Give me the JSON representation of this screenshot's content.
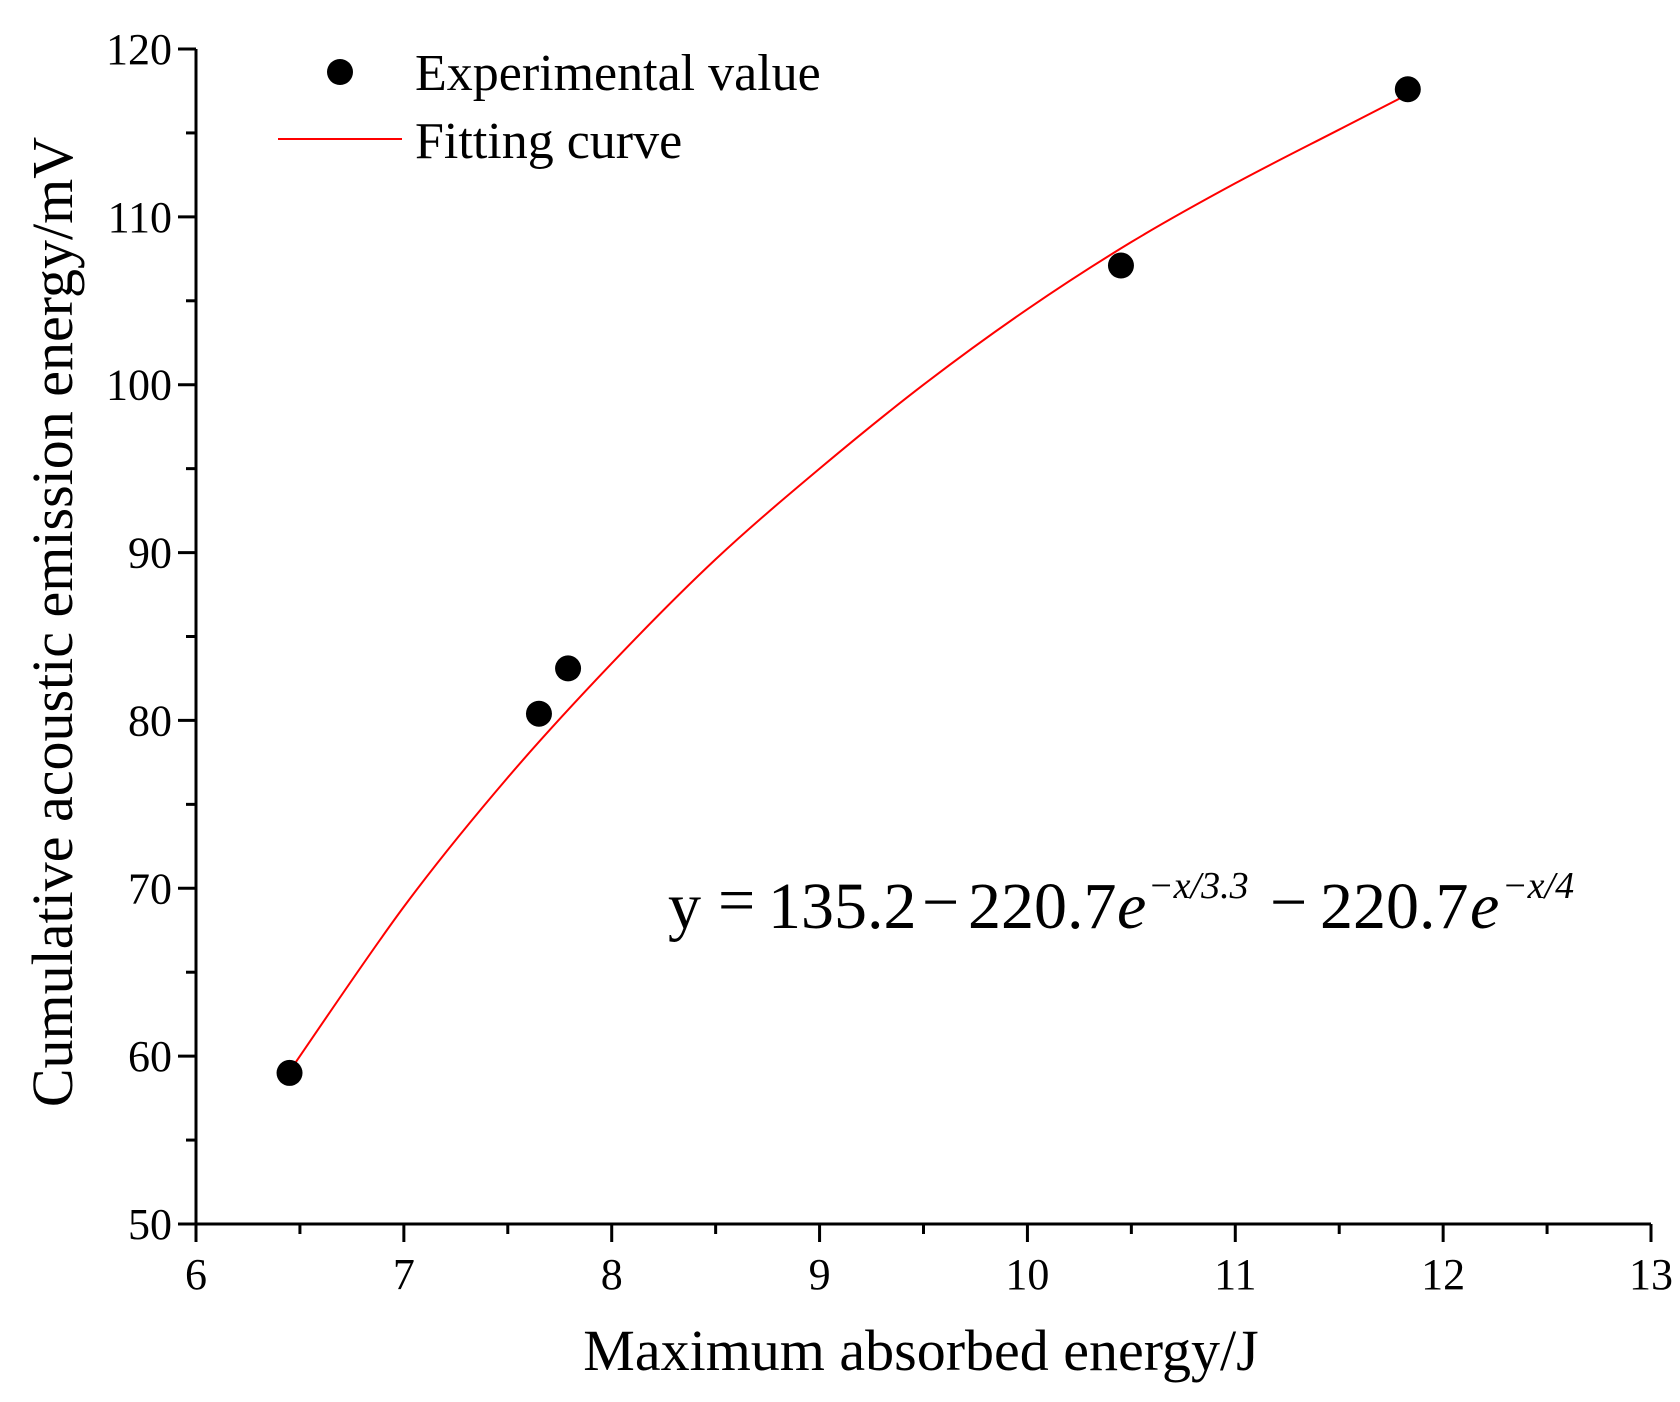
{
  "chart_data": {
    "type": "scatter",
    "title": "",
    "xlabel": "Maximum absorbed energy/J",
    "ylabel": "Cumulative acoustic emission energy/mV",
    "xlim": [
      6,
      13
    ],
    "ylim": [
      50,
      120
    ],
    "xticks": [
      6,
      7,
      8,
      9,
      10,
      11,
      12,
      13
    ],
    "yticks": [
      50,
      60,
      70,
      80,
      90,
      100,
      110,
      120
    ],
    "x_tick_labels": [
      "6",
      "7",
      "8",
      "9",
      "10",
      "11",
      "12",
      "13"
    ],
    "y_tick_labels": [
      "50",
      "60",
      "70",
      "80",
      "90",
      "100",
      "110",
      "120"
    ],
    "x_minor_step": 0.5,
    "y_minor_step": 5,
    "grid": false,
    "legend_position": "top-left",
    "series": [
      {
        "name": "Experimental value",
        "kind": "scatter",
        "color": "#000000",
        "x": [
          6.45,
          7.65,
          7.79,
          10.45,
          11.83
        ],
        "y": [
          59.0,
          80.4,
          83.1,
          107.1,
          117.6
        ]
      },
      {
        "name": "Fitting curve",
        "kind": "line",
        "color": "#ff0000",
        "x": [
          6.45,
          7.0,
          7.5,
          8.0,
          8.5,
          9.0,
          9.5,
          10.0,
          10.5,
          11.0,
          11.5,
          11.83
        ],
        "y": [
          59.1,
          68.9,
          76.6,
          83.4,
          89.6,
          95.0,
          100.0,
          104.5,
          108.5,
          112.0,
          115.2,
          117.3
        ]
      }
    ],
    "annotation": {
      "lhs": "y",
      "eq": "=",
      "c0": "135.2",
      "minus": "−",
      "coef1": "220.7",
      "e": "e",
      "exp1": "−x/3.3",
      "coef2": "220.7",
      "exp2": "−x/4"
    }
  }
}
